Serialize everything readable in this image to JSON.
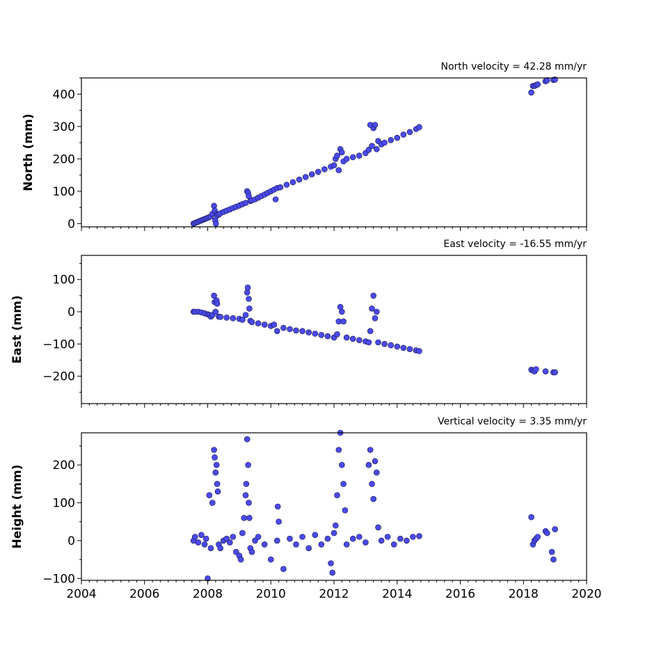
{
  "chart_data": [
    {
      "type": "scatter",
      "title": "North velocity = 42.28 mm/yr",
      "ylabel": "North (mm)",
      "xlabel": "",
      "xlim": [
        2004,
        2020
      ],
      "ylim": [
        -10,
        450
      ],
      "xticks": [
        2004,
        2006,
        2008,
        2010,
        2012,
        2014,
        2016,
        2018,
        2020
      ],
      "xtick_labels": [],
      "yticks": [
        0,
        100,
        200,
        300,
        400
      ],
      "ytick_labels": [
        "0",
        "100",
        "200",
        "300",
        "400"
      ],
      "color": "#4a4af0",
      "edge_color": "#14143c",
      "series": [
        {
          "x": [
            2007.55,
            2007.6,
            2007.65,
            2007.7,
            2007.75,
            2007.8,
            2007.85,
            2007.9,
            2007.95,
            2008.0,
            2008.05,
            2008.1,
            2008.15,
            2008.2,
            2008.22,
            2008.24,
            2008.26,
            2008.28,
            2008.3,
            2008.35,
            2008.4,
            2008.5,
            2008.6,
            2008.7,
            2008.8,
            2008.9,
            2009.0,
            2009.1,
            2009.2,
            2009.25,
            2009.28,
            2009.3,
            2009.35,
            2009.4,
            2009.5,
            2009.6,
            2009.7,
            2009.8,
            2009.9,
            2010.0,
            2010.1,
            2010.15,
            2010.2,
            2010.3,
            2010.5,
            2010.7,
            2010.9,
            2011.1,
            2011.3,
            2011.5,
            2011.7,
            2011.9,
            2012.0,
            2012.05,
            2012.1,
            2012.15,
            2012.2,
            2012.25,
            2012.3,
            2012.4,
            2012.6,
            2012.8,
            2013.0,
            2013.1,
            2013.15,
            2013.2,
            2013.25,
            2013.3,
            2013.35,
            2013.4,
            2013.5,
            2013.6,
            2013.8,
            2014.0,
            2014.2,
            2014.4,
            2014.6,
            2014.7,
            2018.25,
            2018.3,
            2018.35,
            2018.4,
            2018.45,
            2018.7,
            2018.75,
            2018.95,
            2019.0
          ],
          "y": [
            0,
            2,
            4,
            6,
            8,
            10,
            12,
            14,
            16,
            18,
            20,
            22,
            30,
            55,
            40,
            10,
            0,
            30,
            25,
            28,
            32,
            36,
            40,
            44,
            48,
            52,
            56,
            60,
            64,
            100,
            95,
            85,
            70,
            72,
            75,
            80,
            85,
            90,
            95,
            100,
            105,
            75,
            110,
            112,
            120,
            128,
            136,
            144,
            152,
            160,
            168,
            176,
            180,
            200,
            210,
            165,
            230,
            220,
            192,
            200,
            205,
            210,
            218,
            228,
            305,
            240,
            295,
            305,
            230,
            255,
            245,
            250,
            258,
            265,
            275,
            283,
            292,
            298,
            405,
            425,
            425,
            428,
            430,
            440,
            443,
            444,
            445
          ]
        }
      ]
    },
    {
      "type": "scatter",
      "title": "East velocity = -16.55 mm/yr",
      "ylabel": "East (mm)",
      "xlabel": "",
      "xlim": [
        2004,
        2020
      ],
      "ylim": [
        -285,
        175
      ],
      "xticks": [
        2004,
        2006,
        2008,
        2010,
        2012,
        2014,
        2016,
        2018,
        2020
      ],
      "xtick_labels": [],
      "yticks": [
        -200,
        -100,
        0,
        100
      ],
      "ytick_labels": [
        "−200",
        "−100",
        "0",
        "100"
      ],
      "color": "#4a4af0",
      "edge_color": "#14143c",
      "series": [
        {
          "x": [
            2007.55,
            2007.6,
            2007.7,
            2007.8,
            2007.9,
            2008.0,
            2008.05,
            2008.1,
            2008.15,
            2008.2,
            2008.22,
            2008.25,
            2008.28,
            2008.3,
            2008.35,
            2008.4,
            2008.6,
            2008.8,
            2009.0,
            2009.1,
            2009.2,
            2009.25,
            2009.27,
            2009.3,
            2009.32,
            2009.35,
            2009.4,
            2009.6,
            2009.8,
            2010.0,
            2010.1,
            2010.2,
            2010.4,
            2010.6,
            2010.8,
            2011.0,
            2011.2,
            2011.4,
            2011.6,
            2011.8,
            2012.0,
            2012.1,
            2012.15,
            2012.2,
            2012.25,
            2012.3,
            2012.4,
            2012.6,
            2012.8,
            2013.0,
            2013.1,
            2013.15,
            2013.2,
            2013.25,
            2013.3,
            2013.35,
            2013.4,
            2013.6,
            2013.8,
            2014.0,
            2014.2,
            2014.4,
            2014.6,
            2014.7,
            2018.25,
            2018.3,
            2018.35,
            2018.4,
            2018.7,
            2018.95,
            2019.0
          ],
          "y": [
            0,
            0,
            0,
            -2,
            -5,
            -8,
            -10,
            -15,
            -10,
            50,
            30,
            0,
            35,
            25,
            -15,
            -16,
            -18,
            -20,
            -22,
            -25,
            -10,
            60,
            75,
            40,
            10,
            -28,
            -32,
            -36,
            -40,
            -44,
            -40,
            -60,
            -50,
            -54,
            -58,
            -60,
            -64,
            -68,
            -72,
            -76,
            -80,
            -70,
            -30,
            15,
            0,
            -30,
            -80,
            -84,
            -88,
            -92,
            -95,
            -60,
            10,
            50,
            -20,
            0,
            -95,
            -100,
            -104,
            -108,
            -112,
            -116,
            -120,
            -122,
            -180,
            -182,
            -185,
            -178,
            -185,
            -188,
            -188
          ]
        }
      ]
    },
    {
      "type": "scatter",
      "title": "Vertical velocity = 3.35 mm/yr",
      "ylabel": "Height (mm)",
      "xlabel": "",
      "xlim": [
        2004,
        2020
      ],
      "ylim": [
        -105,
        285
      ],
      "xticks": [
        2004,
        2006,
        2008,
        2010,
        2012,
        2014,
        2016,
        2018,
        2020
      ],
      "xtick_labels": [
        "2004",
        "2006",
        "2008",
        "2010",
        "2012",
        "2014",
        "2016",
        "2018",
        "2020"
      ],
      "yticks": [
        -100,
        0,
        100,
        200
      ],
      "ytick_labels": [
        "−100",
        "0",
        "100",
        "200"
      ],
      "color": "#4a4af0",
      "edge_color": "#14143c",
      "series": [
        {
          "x": [
            2007.55,
            2007.6,
            2007.7,
            2007.8,
            2007.9,
            2007.95,
            2008.0,
            2008.05,
            2008.1,
            2008.15,
            2008.2,
            2008.22,
            2008.25,
            2008.28,
            2008.3,
            2008.32,
            2008.35,
            2008.4,
            2008.5,
            2008.6,
            2008.7,
            2008.8,
            2008.9,
            2009.0,
            2009.05,
            2009.1,
            2009.15,
            2009.2,
            2009.22,
            2009.25,
            2009.28,
            2009.3,
            2009.32,
            2009.35,
            2009.4,
            2009.5,
            2009.6,
            2009.8,
            2010.0,
            2010.2,
            2010.22,
            2010.25,
            2010.4,
            2010.6,
            2010.8,
            2011.0,
            2011.2,
            2011.4,
            2011.6,
            2011.8,
            2011.9,
            2011.95,
            2012.0,
            2012.05,
            2012.1,
            2012.15,
            2012.2,
            2012.25,
            2012.3,
            2012.35,
            2012.4,
            2012.6,
            2012.8,
            2013.0,
            2013.1,
            2013.15,
            2013.2,
            2013.25,
            2013.3,
            2013.35,
            2013.4,
            2013.5,
            2013.7,
            2013.9,
            2014.1,
            2014.3,
            2014.5,
            2014.7,
            2018.25,
            2018.3,
            2018.35,
            2018.4,
            2018.45,
            2018.7,
            2018.75,
            2018.9,
            2018.95,
            2019.0
          ],
          "y": [
            0,
            10,
            -5,
            15,
            -10,
            5,
            -100,
            120,
            -20,
            100,
            240,
            220,
            180,
            200,
            150,
            130,
            -10,
            -20,
            0,
            5,
            -5,
            10,
            -30,
            -40,
            -50,
            20,
            60,
            120,
            150,
            268,
            200,
            100,
            60,
            -20,
            -30,
            0,
            10,
            -10,
            -50,
            0,
            90,
            50,
            -75,
            5,
            -10,
            10,
            -20,
            15,
            -10,
            5,
            -60,
            -85,
            20,
            40,
            120,
            240,
            285,
            200,
            150,
            80,
            -10,
            5,
            10,
            -5,
            200,
            240,
            150,
            110,
            210,
            180,
            35,
            0,
            10,
            -10,
            5,
            0,
            10,
            12,
            62,
            -10,
            0,
            5,
            10,
            25,
            20,
            -30,
            -50,
            30
          ]
        }
      ]
    }
  ]
}
